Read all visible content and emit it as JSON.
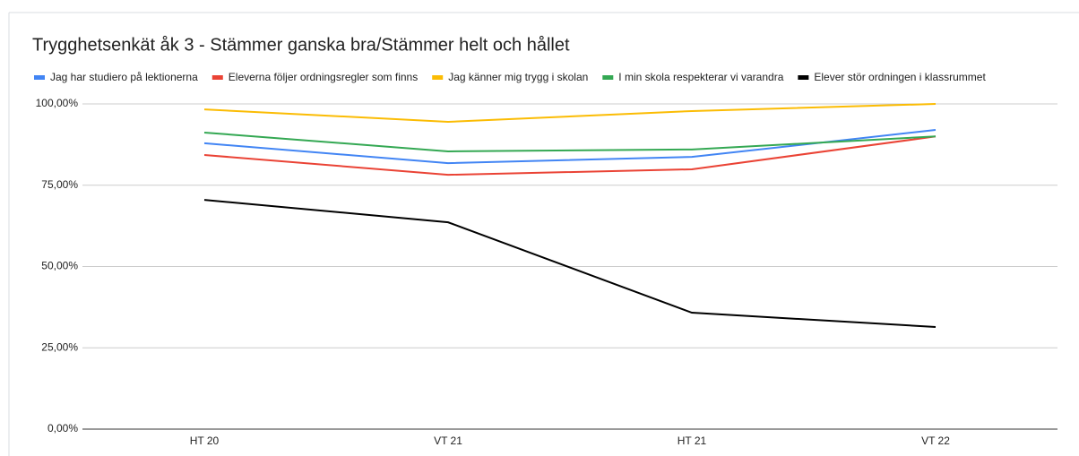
{
  "chart_data": {
    "type": "line",
    "title": "Trygghetsenkät åk 3 - Stämmer ganska bra/Stämmer helt och hållet",
    "categories": [
      "HT 20",
      "VT 21",
      "HT 21",
      "VT 22"
    ],
    "series": [
      {
        "name": "Jag har studiero på lektionerna",
        "color": "#4285f4",
        "values": [
          87.9,
          81.8,
          83.7,
          92
        ]
      },
      {
        "name": "Eleverna följer ordningsregler som finns",
        "color": "#ea4335",
        "values": [
          84.3,
          78.2,
          79.9,
          90
        ]
      },
      {
        "name": "Jag känner mig trygg i skolan",
        "color": "#fbbc04",
        "values": [
          98.3,
          94.5,
          97.8,
          100
        ]
      },
      {
        "name": "I min skola respekterar vi varandra",
        "color": "#34a853",
        "values": [
          91.2,
          85.4,
          86,
          90
        ]
      },
      {
        "name": "Elever stör ordningen i klassrummet",
        "color": "#000000",
        "values": [
          70.5,
          63.6,
          35.8,
          31.4
        ]
      }
    ],
    "ylim": [
      0,
      100
    ],
    "yticks": [
      {
        "value": 0,
        "label": "0,00%"
      },
      {
        "value": 25,
        "label": "25,00%"
      },
      {
        "value": 50,
        "label": "50,00%"
      },
      {
        "value": 75,
        "label": "75,00%"
      },
      {
        "value": 100,
        "label": "100,00%"
      }
    ],
    "grid": true,
    "legend": "top"
  }
}
